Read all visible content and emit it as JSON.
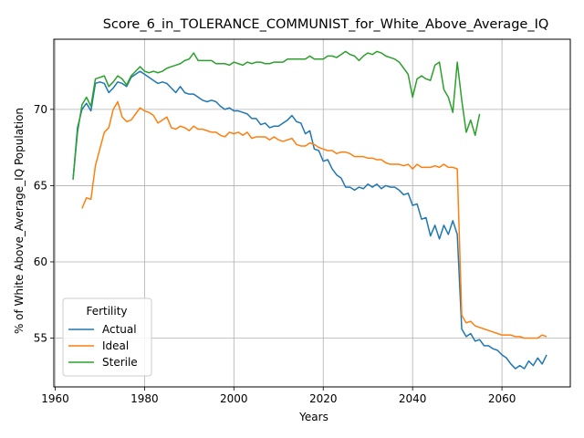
{
  "chart_data": {
    "type": "line",
    "title": "Score_6_in_TOLERANCE_COMMUNIST_for_White_Above_Average_IQ",
    "xlabel": "Years",
    "ylabel": "% of White Above_Average_IQ Population",
    "xlim": [
      1959.7,
      2075.3
    ],
    "ylim": [
      51.8,
      74.6
    ],
    "xticks": [
      1960,
      1980,
      2000,
      2020,
      2040,
      2060
    ],
    "yticks": [
      55,
      60,
      65,
      70
    ],
    "grid": true,
    "legend": {
      "title": "Fertility",
      "placement": "lower-left"
    },
    "series": [
      {
        "name": "Actual",
        "color": "#1f77b4",
        "x": [
          1964,
          1965,
          1966,
          1967,
          1968,
          1969,
          1970,
          1971,
          1972,
          1973,
          1974,
          1975,
          1976,
          1977,
          1978,
          1979,
          1980,
          1981,
          1982,
          1983,
          1984,
          1985,
          1986,
          1987,
          1988,
          1989,
          1990,
          1991,
          1992,
          1993,
          1994,
          1995,
          1996,
          1997,
          1998,
          1999,
          2000,
          2001,
          2002,
          2003,
          2004,
          2005,
          2006,
          2007,
          2008,
          2009,
          2010,
          2011,
          2012,
          2013,
          2014,
          2015,
          2016,
          2017,
          2018,
          2019,
          2020,
          2021,
          2022,
          2023,
          2024,
          2025,
          2026,
          2027,
          2028,
          2029,
          2030,
          2031,
          2032,
          2033,
          2034,
          2035,
          2036,
          2037,
          2038,
          2039,
          2040,
          2041,
          2042,
          2043,
          2044,
          2045,
          2046,
          2047,
          2048,
          2049,
          2050,
          2051,
          2052,
          2053,
          2054,
          2055,
          2056,
          2057,
          2058,
          2059,
          2060,
          2061,
          2062,
          2063,
          2064,
          2065,
          2066,
          2067,
          2068,
          2069,
          2070
        ],
        "values": [
          65.4,
          68.8,
          70.0,
          70.4,
          69.9,
          71.7,
          71.8,
          71.7,
          71.1,
          71.4,
          71.8,
          71.7,
          71.5,
          72.1,
          72.3,
          72.5,
          72.3,
          72.1,
          71.9,
          71.7,
          71.8,
          71.7,
          71.4,
          71.1,
          71.5,
          71.1,
          71.0,
          71.0,
          70.8,
          70.6,
          70.5,
          70.6,
          70.5,
          70.2,
          70.0,
          70.1,
          69.9,
          69.9,
          69.8,
          69.7,
          69.4,
          69.4,
          69.0,
          69.1,
          68.8,
          68.9,
          68.9,
          69.1,
          69.3,
          69.6,
          69.2,
          69.1,
          68.4,
          68.6,
          67.4,
          67.3,
          66.6,
          66.7,
          66.1,
          65.7,
          65.5,
          64.9,
          64.9,
          64.7,
          64.9,
          64.8,
          65.1,
          64.9,
          65.1,
          64.8,
          65.0,
          64.9,
          64.9,
          64.7,
          64.4,
          64.5,
          63.7,
          63.8,
          62.8,
          62.9,
          61.7,
          62.4,
          61.5,
          62.4,
          61.8,
          62.7,
          61.8,
          55.6,
          55.1,
          55.3,
          54.8,
          54.9,
          54.5,
          54.5,
          54.3,
          54.2,
          53.9,
          53.7,
          53.3,
          53.0,
          53.2,
          53.0,
          53.5,
          53.2,
          53.7,
          53.3,
          53.9
        ]
      },
      {
        "name": "Ideal",
        "color": "#ff7f0e",
        "x": [
          1966,
          1967,
          1968,
          1969,
          1970,
          1971,
          1972,
          1973,
          1974,
          1975,
          1976,
          1977,
          1978,
          1979,
          1980,
          1981,
          1982,
          1983,
          1984,
          1985,
          1986,
          1987,
          1988,
          1989,
          1990,
          1991,
          1992,
          1993,
          1994,
          1995,
          1996,
          1997,
          1998,
          1999,
          2000,
          2001,
          2002,
          2003,
          2004,
          2005,
          2006,
          2007,
          2008,
          2009,
          2010,
          2011,
          2012,
          2013,
          2014,
          2015,
          2016,
          2017,
          2018,
          2019,
          2020,
          2021,
          2022,
          2023,
          2024,
          2025,
          2026,
          2027,
          2028,
          2029,
          2030,
          2031,
          2032,
          2033,
          2034,
          2035,
          2036,
          2037,
          2038,
          2039,
          2040,
          2041,
          2042,
          2043,
          2044,
          2045,
          2046,
          2047,
          2048,
          2049,
          2050,
          2051,
          2052,
          2053,
          2054,
          2055,
          2056,
          2057,
          2058,
          2059,
          2060,
          2061,
          2062,
          2063,
          2064,
          2065,
          2066,
          2067,
          2068,
          2069,
          2070
        ],
        "values": [
          63.5,
          64.2,
          64.1,
          66.3,
          67.4,
          68.5,
          68.8,
          70.0,
          70.5,
          69.5,
          69.2,
          69.3,
          69.7,
          70.1,
          69.9,
          69.8,
          69.6,
          69.1,
          69.3,
          69.5,
          68.8,
          68.7,
          68.9,
          68.8,
          68.6,
          68.9,
          68.7,
          68.7,
          68.6,
          68.5,
          68.5,
          68.3,
          68.2,
          68.5,
          68.4,
          68.5,
          68.3,
          68.5,
          68.1,
          68.2,
          68.2,
          68.2,
          68.0,
          68.2,
          68.0,
          67.9,
          68.0,
          68.1,
          67.7,
          67.6,
          67.6,
          67.8,
          67.7,
          67.5,
          67.4,
          67.3,
          67.3,
          67.1,
          67.2,
          67.2,
          67.1,
          66.9,
          66.9,
          66.9,
          66.8,
          66.8,
          66.7,
          66.7,
          66.5,
          66.4,
          66.4,
          66.4,
          66.3,
          66.4,
          66.1,
          66.4,
          66.2,
          66.2,
          66.2,
          66.3,
          66.2,
          66.4,
          66.2,
          66.2,
          66.1,
          56.5,
          56.0,
          56.1,
          55.8,
          55.7,
          55.6,
          55.5,
          55.4,
          55.3,
          55.2,
          55.2,
          55.2,
          55.1,
          55.1,
          55.0,
          55.0,
          55.0,
          55.0,
          55.2,
          55.1
        ]
      },
      {
        "name": "Sterile",
        "color": "#2ca02c",
        "x": [
          1964,
          1965,
          1966,
          1967,
          1968,
          1969,
          1970,
          1971,
          1972,
          1973,
          1974,
          1975,
          1976,
          1977,
          1978,
          1979,
          1980,
          1981,
          1982,
          1983,
          1984,
          1985,
          1986,
          1987,
          1988,
          1989,
          1990,
          1991,
          1992,
          1993,
          1994,
          1995,
          1996,
          1997,
          1998,
          1999,
          2000,
          2001,
          2002,
          2003,
          2004,
          2005,
          2006,
          2007,
          2008,
          2009,
          2010,
          2011,
          2012,
          2013,
          2014,
          2015,
          2016,
          2017,
          2018,
          2019,
          2020,
          2021,
          2022,
          2023,
          2024,
          2025,
          2026,
          2027,
          2028,
          2029,
          2030,
          2031,
          2032,
          2033,
          2034,
          2035,
          2036,
          2037,
          2038,
          2039,
          2040,
          2041,
          2042,
          2043,
          2044,
          2045,
          2046,
          2047,
          2048,
          2049,
          2050,
          2051,
          2052,
          2053,
          2054,
          2055
        ],
        "values": [
          65.4,
          68.5,
          70.3,
          70.8,
          70.2,
          72.0,
          72.1,
          72.2,
          71.5,
          71.8,
          72.2,
          72.0,
          71.6,
          72.2,
          72.5,
          72.8,
          72.5,
          72.4,
          72.5,
          72.4,
          72.5,
          72.7,
          72.8,
          72.9,
          73.0,
          73.2,
          73.3,
          73.7,
          73.2,
          73.2,
          73.2,
          73.2,
          73.0,
          73.0,
          73.0,
          72.9,
          73.1,
          73.0,
          72.9,
          73.1,
          73.0,
          73.1,
          73.1,
          73.0,
          73.0,
          73.1,
          73.1,
          73.1,
          73.3,
          73.3,
          73.3,
          73.3,
          73.3,
          73.5,
          73.3,
          73.3,
          73.3,
          73.5,
          73.5,
          73.4,
          73.6,
          73.8,
          73.6,
          73.5,
          73.2,
          73.5,
          73.7,
          73.6,
          73.8,
          73.7,
          73.5,
          73.4,
          73.3,
          73.1,
          72.7,
          72.3,
          70.8,
          72.0,
          72.2,
          72.0,
          71.9,
          72.9,
          73.1,
          71.3,
          70.8,
          69.8,
          73.1,
          70.6,
          68.5,
          69.3,
          68.3,
          69.7
        ]
      }
    ]
  }
}
